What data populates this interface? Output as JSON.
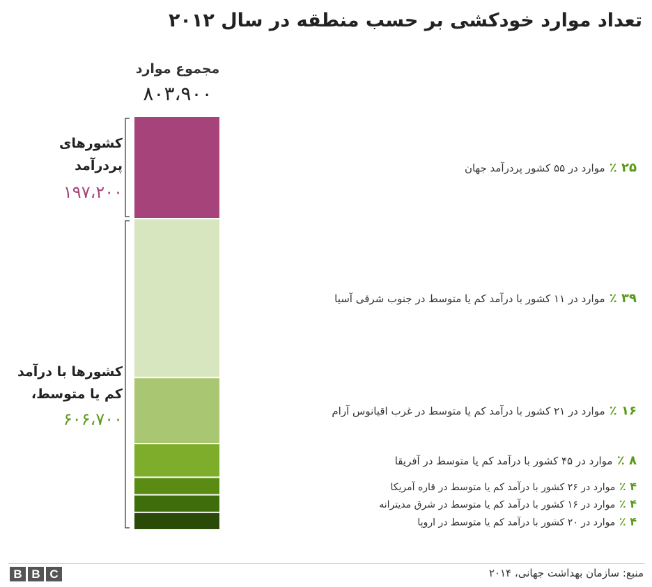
{
  "title": "تعداد موارد خودکشی بر حسب منطقه در سال ۲۰۱۲",
  "total": {
    "label": "مجموع موارد",
    "value": "۸۰۳،۹۰۰"
  },
  "groups": [
    {
      "label_line1": "کشورهای",
      "label_line2": "پردرآمد",
      "value": "۱۹۷،۲۰۰",
      "color": "#a6437a"
    },
    {
      "label_line1": "کشورها با درآمد",
      "label_line2": "کم یا متوسط،",
      "value": "۶۰۶،۷۰۰",
      "color": "#5a9a1a"
    }
  ],
  "source": "منبع: سازمان بهداشت جهانی، ۲۰۱۴",
  "logo": [
    "B",
    "B",
    "C"
  ],
  "chart_data": {
    "type": "bar",
    "stacked": true,
    "total": 803900,
    "categories": [
      "موارد در ۵۵ کشور پردرآمد جهان",
      "موارد در ۱۱ کشور با درآمد کم یا متوسط در جنوب شرقی آسیا",
      "موارد در ۲۱  کشور با درآمد کم یا متوسط در غرب اقیانوس آرام",
      "موارد در  ۴۵ کشور با درآمد کم یا متوسط در آفریقا",
      "موارد در ۲۶ کشور با درآمد کم یا متوسط در قاره آمریکا",
      "موارد در ۱۶ کشور با درآمد کم یا متوسط در شرق مدیترانه",
      "موارد در  ۲۰ کشور با درآمد کم یا متوسط در اروپا"
    ],
    "percent_labels": [
      "۲۵ ٪",
      "۳۹ ٪",
      "۱۶ ٪",
      "۸ ٪",
      "۴ ٪",
      "۴ ٪",
      "۴ ٪"
    ],
    "values": [
      25,
      39,
      16,
      8,
      4,
      4,
      4
    ],
    "colors": [
      "#a6437a",
      "#d8e6c0",
      "#a9c672",
      "#7ead2c",
      "#5a8c14",
      "#3f6d0c",
      "#2a4a08"
    ],
    "groups": [
      {
        "start": 0,
        "end": 0
      },
      {
        "start": 1,
        "end": 6
      }
    ]
  }
}
